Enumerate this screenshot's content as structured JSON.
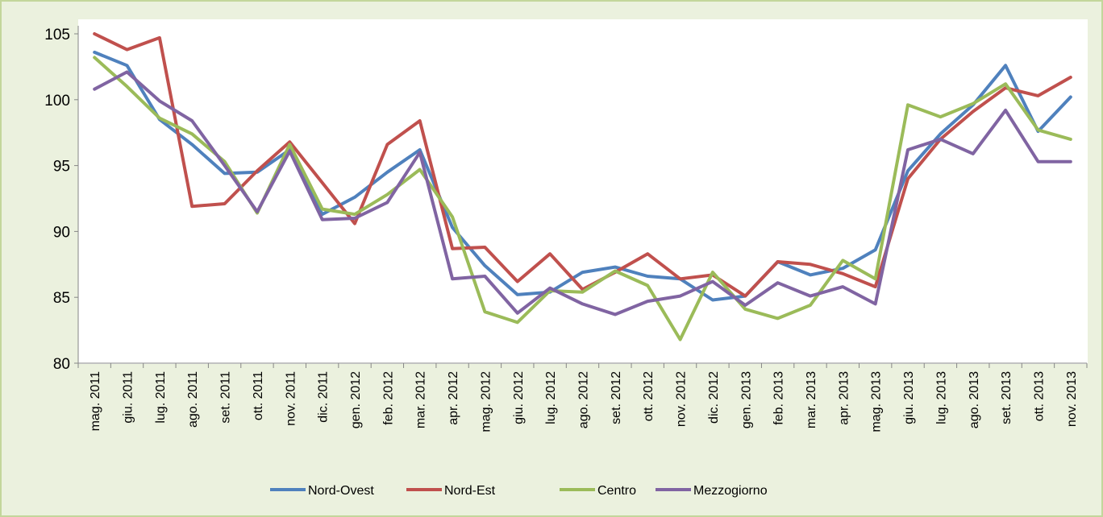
{
  "chart_data": {
    "type": "line",
    "categories": [
      "mag. 2011",
      "giu. 2011",
      "lug. 2011",
      "ago. 2011",
      "set. 2011",
      "ott. 2011",
      "nov. 2011",
      "dic. 2011",
      "gen. 2012",
      "feb. 2012",
      "mar. 2012",
      "apr. 2012",
      "mag. 2012",
      "giu. 2012",
      "lug. 2012",
      "ago. 2012",
      "set. 2012",
      "ott. 2012",
      "nov. 2012",
      "dic. 2012",
      "gen. 2013",
      "feb. 2013",
      "mar. 2013",
      "apr. 2013",
      "mag. 2013",
      "giu. 2013",
      "lug. 2013",
      "ago. 2013",
      "set. 2013",
      "ott. 2013",
      "nov. 2013"
    ],
    "series": [
      {
        "name": "Nord-Ovest",
        "color": "#4f81bd",
        "values": [
          103.6,
          102.6,
          98.5,
          96.6,
          94.4,
          94.5,
          96.2,
          91.3,
          92.6,
          94.5,
          96.2,
          90.3,
          87.4,
          85.2,
          85.4,
          86.9,
          87.3,
          86.6,
          86.4,
          84.8,
          85.1,
          87.7,
          86.7,
          87.2,
          88.6,
          94.6,
          97.4,
          99.6,
          102.6,
          97.6,
          100.2
        ]
      },
      {
        "name": "Nord-Est",
        "color": "#c0504d",
        "values": [
          105.0,
          103.8,
          104.7,
          91.9,
          92.1,
          94.6,
          96.8,
          93.7,
          90.6,
          96.6,
          98.4,
          88.7,
          88.8,
          86.2,
          88.3,
          85.6,
          86.9,
          88.3,
          86.4,
          86.7,
          85.1,
          87.7,
          87.5,
          86.8,
          85.8,
          94.0,
          97.0,
          99.1,
          100.9,
          100.3,
          101.7
        ]
      },
      {
        "name": "Centro",
        "color": "#9bbb59",
        "values": [
          103.2,
          101.0,
          98.6,
          97.4,
          95.3,
          91.4,
          96.6,
          91.7,
          91.3,
          92.8,
          94.7,
          91.1,
          83.9,
          83.1,
          85.5,
          85.4,
          87.0,
          85.9,
          81.8,
          86.9,
          84.1,
          83.4,
          84.4,
          87.8,
          86.4,
          99.6,
          98.7,
          99.7,
          101.2,
          97.7,
          97.0
        ]
      },
      {
        "name": "Mezzogiorno",
        "color": "#8064a2",
        "values": [
          100.8,
          102.1,
          99.9,
          98.4,
          95.0,
          91.5,
          96.1,
          90.9,
          91.0,
          92.2,
          96.0,
          86.4,
          86.6,
          83.8,
          85.7,
          84.5,
          83.7,
          84.7,
          85.1,
          86.2,
          84.4,
          86.1,
          85.1,
          85.8,
          84.5,
          96.2,
          97.0,
          95.9,
          99.2,
          95.3,
          95.3
        ]
      }
    ],
    "ylim": [
      80,
      105
    ],
    "yticks": [
      80,
      85,
      90,
      95,
      100,
      105
    ],
    "grid": false,
    "legend": "bottom"
  }
}
